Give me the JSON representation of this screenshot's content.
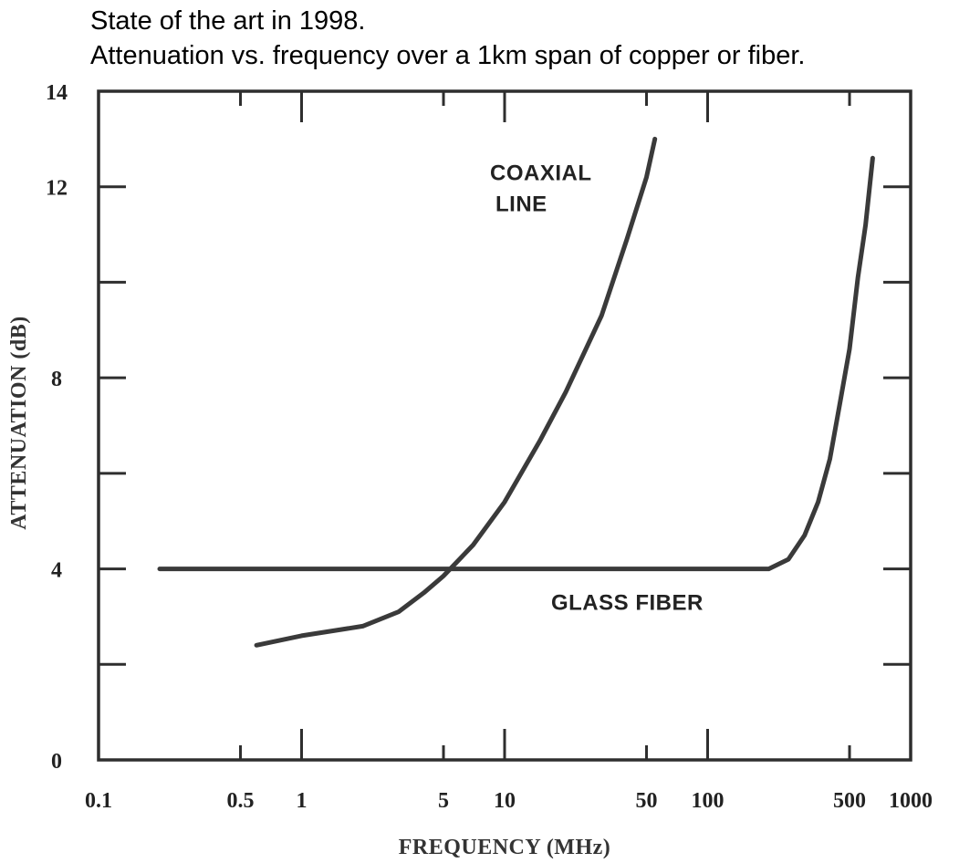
{
  "header": {
    "line1": "State of the art in 1998.",
    "line2": "Attenuation vs. frequency over a 1km span of copper or fiber."
  },
  "chart_data": {
    "type": "line",
    "xlabel": "FREQUENCY (MHz)",
    "ylabel": "ATTENUATION (dB)",
    "x_scale": "log",
    "xlim": [
      0.1,
      1000
    ],
    "ylim": [
      0,
      14
    ],
    "x_ticks": [
      0.1,
      0.5,
      1,
      5,
      10,
      50,
      100,
      500,
      1000
    ],
    "x_tick_labels": [
      "0.1",
      "0.5",
      "1",
      "5",
      "10",
      "50",
      "100",
      "500",
      "1000"
    ],
    "y_ticks": [
      0,
      4,
      8,
      12,
      14
    ],
    "y_tick_labels": [
      "0",
      "4",
      "8",
      "12",
      "14"
    ],
    "grid": false,
    "series": [
      {
        "name": "COAXIAL LINE",
        "color": "#3a3a3a",
        "points": [
          [
            0.6,
            2.4
          ],
          [
            1,
            2.6
          ],
          [
            2,
            2.8
          ],
          [
            3,
            3.1
          ],
          [
            4,
            3.5
          ],
          [
            5,
            3.85
          ],
          [
            7,
            4.5
          ],
          [
            10,
            5.4
          ],
          [
            15,
            6.7
          ],
          [
            20,
            7.7
          ],
          [
            30,
            9.3
          ],
          [
            40,
            10.9
          ],
          [
            50,
            12.2
          ],
          [
            55,
            13.0
          ]
        ]
      },
      {
        "name": "GLASS FIBER",
        "color": "#3a3a3a",
        "points": [
          [
            0.2,
            4.0
          ],
          [
            1,
            4.0
          ],
          [
            10,
            4.0
          ],
          [
            100,
            4.0
          ],
          [
            200,
            4.0
          ],
          [
            250,
            4.2
          ],
          [
            300,
            4.7
          ],
          [
            350,
            5.4
          ],
          [
            400,
            6.3
          ],
          [
            450,
            7.5
          ],
          [
            500,
            8.6
          ],
          [
            550,
            10.1
          ],
          [
            600,
            11.2
          ],
          [
            650,
            12.6
          ]
        ]
      }
    ],
    "annotations": [
      {
        "lines": [
          "COAXIAL",
          "LINE"
        ],
        "x": 10,
        "y": 12.1
      },
      {
        "lines": [
          "GLASS FIBER"
        ],
        "x": 20,
        "y": 3.1
      }
    ]
  }
}
